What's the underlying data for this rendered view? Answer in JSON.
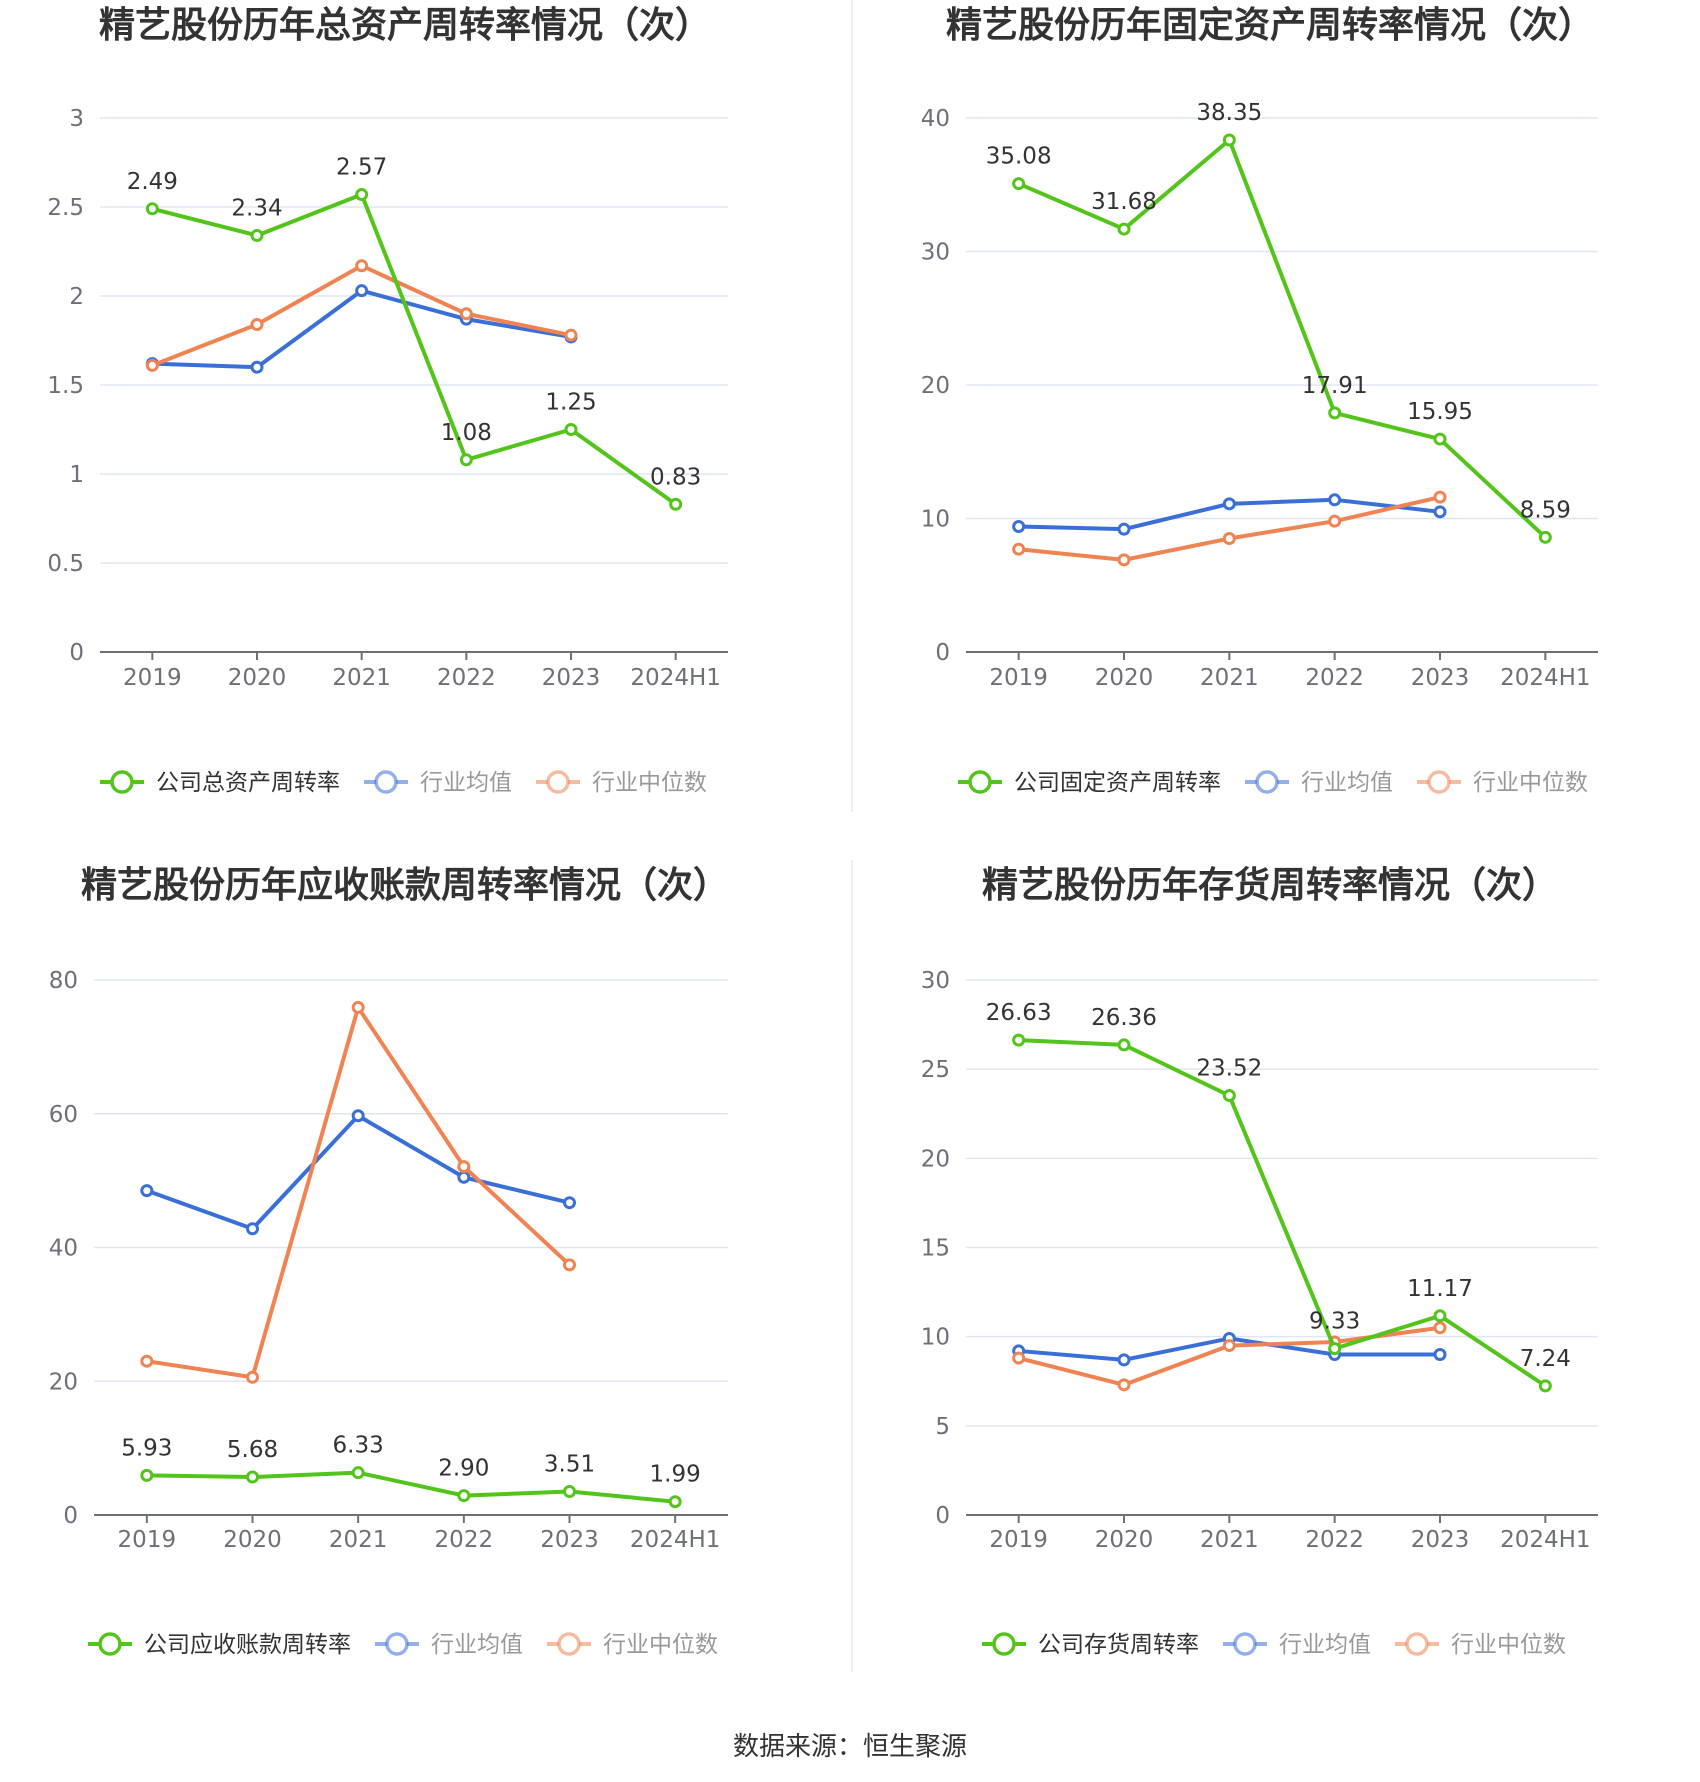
{
  "source": "数据来源：恒生聚源",
  "colors": {
    "company": "#52c41a",
    "avg": "#3a6fd8",
    "median": "#ef8352",
    "grid": "#e0e6f1",
    "axis": "#6e7079"
  },
  "chart_data": [
    {
      "type": "line",
      "title": "精艺股份历年总资产周转率情况（次）",
      "categories": [
        "2019",
        "2020",
        "2021",
        "2022",
        "2023",
        "2024H1"
      ],
      "ylim": [
        0,
        3
      ],
      "yticks": [
        0,
        0.5,
        1,
        1.5,
        2,
        2.5,
        3
      ],
      "ytick_labels": [
        "0",
        "0.5",
        "1",
        "1.5",
        "2",
        "2.5",
        "3"
      ],
      "series": [
        {
          "name": "公司总资产周转率",
          "role": "company",
          "values": [
            2.49,
            2.34,
            2.57,
            1.08,
            1.25,
            0.83
          ],
          "labels": [
            "2.49",
            "2.34",
            "2.57",
            "1.08",
            "1.25",
            "0.83"
          ]
        },
        {
          "name": "行业均值",
          "role": "avg",
          "values": [
            1.62,
            1.6,
            2.03,
            1.87,
            1.77,
            null
          ]
        },
        {
          "name": "行业中位数",
          "role": "median",
          "values": [
            1.61,
            1.84,
            2.17,
            1.9,
            1.78,
            null
          ]
        }
      ]
    },
    {
      "type": "line",
      "title": "精艺股份历年固定资产周转率情况（次）",
      "categories": [
        "2019",
        "2020",
        "2021",
        "2022",
        "2023",
        "2024H1"
      ],
      "ylim": [
        0,
        40
      ],
      "yticks": [
        0,
        10,
        20,
        30,
        40
      ],
      "ytick_labels": [
        "0",
        "10",
        "20",
        "30",
        "40"
      ],
      "series": [
        {
          "name": "公司固定资产周转率",
          "role": "company",
          "values": [
            35.08,
            31.68,
            38.35,
            17.91,
            15.95,
            8.59
          ],
          "labels": [
            "35.08",
            "31.68",
            "38.35",
            "17.91",
            "15.95",
            "8.59"
          ]
        },
        {
          "name": "行业均值",
          "role": "avg",
          "values": [
            9.4,
            9.2,
            11.1,
            11.4,
            10.5,
            null
          ]
        },
        {
          "name": "行业中位数",
          "role": "median",
          "values": [
            7.7,
            6.9,
            8.5,
            9.8,
            11.6,
            null
          ]
        }
      ]
    },
    {
      "type": "line",
      "title": "精艺股份历年应收账款周转率情况（次）",
      "categories": [
        "2019",
        "2020",
        "2021",
        "2022",
        "2023",
        "2024H1"
      ],
      "ylim": [
        0,
        80
      ],
      "yticks": [
        0,
        20,
        40,
        60,
        80
      ],
      "ytick_labels": [
        "0",
        "20",
        "40",
        "60",
        "80"
      ],
      "series": [
        {
          "name": "公司应收账款周转率",
          "role": "company",
          "values": [
            5.93,
            5.68,
            6.33,
            2.9,
            3.51,
            1.99
          ],
          "labels": [
            "5.93",
            "5.68",
            "6.33",
            "2.90",
            "3.51",
            "1.99"
          ]
        },
        {
          "name": "行业均值",
          "role": "avg",
          "values": [
            48.5,
            42.8,
            59.7,
            50.5,
            46.7,
            null
          ]
        },
        {
          "name": "行业中位数",
          "role": "median",
          "values": [
            23.0,
            20.6,
            75.9,
            52.1,
            37.4,
            null
          ]
        }
      ]
    },
    {
      "type": "line",
      "title": "精艺股份历年存货周转率情况（次）",
      "categories": [
        "2019",
        "2020",
        "2021",
        "2022",
        "2023",
        "2024H1"
      ],
      "ylim": [
        0,
        30
      ],
      "yticks": [
        0,
        5,
        10,
        15,
        20,
        25,
        30
      ],
      "ytick_labels": [
        "0",
        "5",
        "10",
        "15",
        "20",
        "25",
        "30"
      ],
      "series": [
        {
          "name": "公司存货周转率",
          "role": "company",
          "values": [
            26.63,
            26.36,
            23.52,
            9.33,
            11.17,
            7.24
          ],
          "labels": [
            "26.63",
            "26.36",
            "23.52",
            "9.33",
            "11.17",
            "7.24"
          ]
        },
        {
          "name": "行业均值",
          "role": "avg",
          "values": [
            9.2,
            8.7,
            9.9,
            9.0,
            9.0,
            null
          ]
        },
        {
          "name": "行业中位数",
          "role": "median",
          "values": [
            8.8,
            7.3,
            9.5,
            9.7,
            10.5,
            null
          ]
        }
      ]
    }
  ]
}
